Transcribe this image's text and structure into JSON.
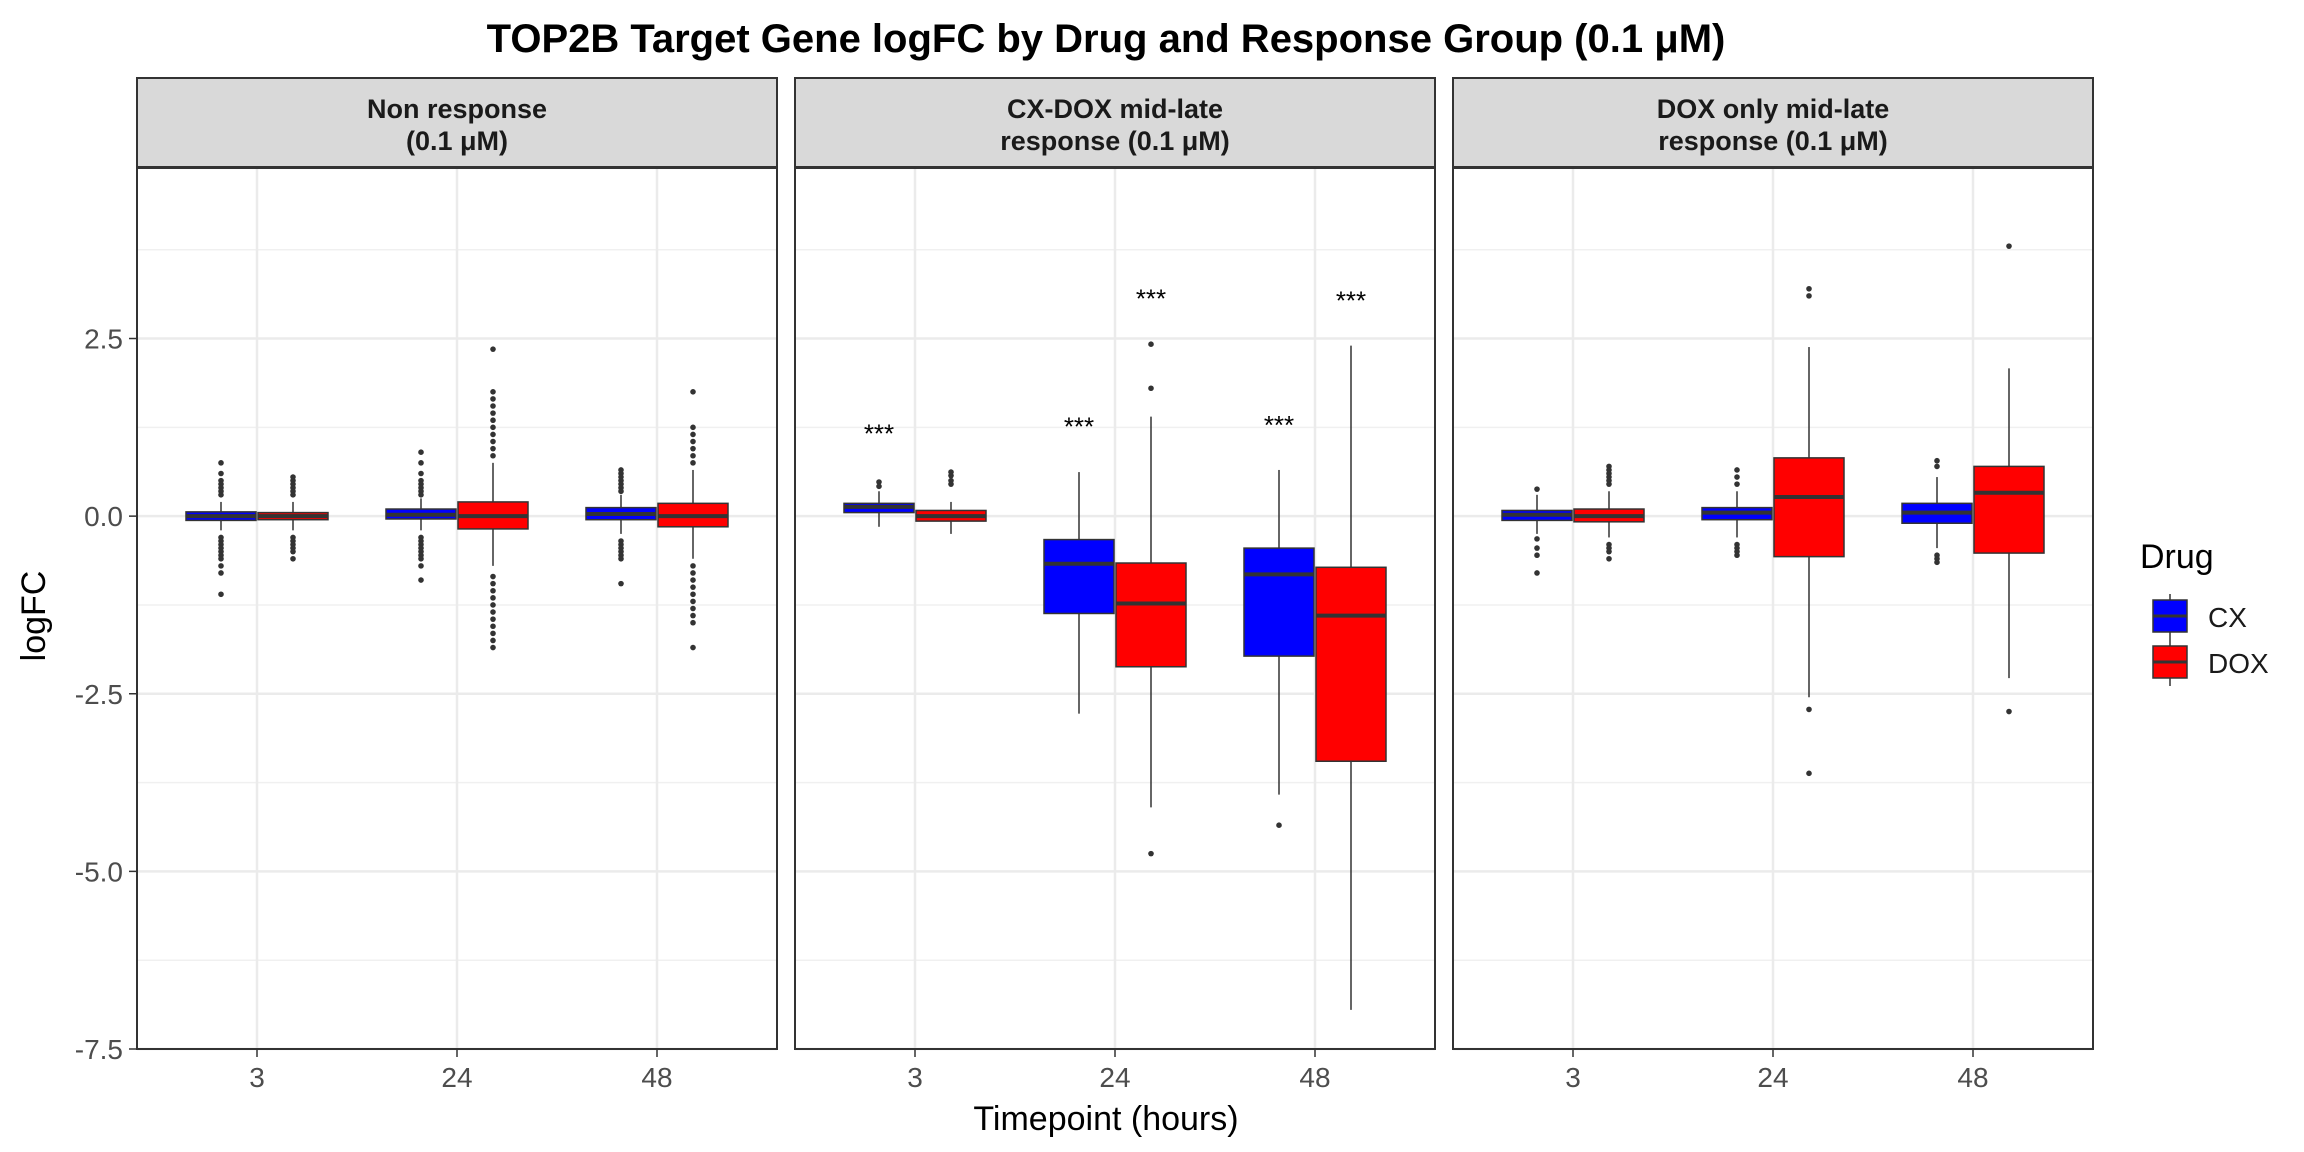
{
  "chart_data": {
    "type": "boxplot",
    "title": "TOP2B Target Gene logFC by Drug and Response Group (0.1 μM)",
    "xlabel": "Timepoint (hours)",
    "ylabel": "logFC",
    "categories": [
      "3",
      "24",
      "48"
    ],
    "y_ticks": [
      2.5,
      0.0,
      -2.5,
      -5.0,
      -7.5
    ],
    "y_tick_labels": [
      "2.5",
      "0.0",
      "-2.5",
      "-5.0",
      "-7.5"
    ],
    "ylim": [
      -7.5,
      4.9
    ],
    "grid": true,
    "legend": {
      "title": "Drug",
      "position": "right",
      "items": [
        {
          "name": "CX",
          "color": "#0000ff"
        },
        {
          "name": "DOX",
          "color": "#ff0000"
        }
      ]
    },
    "facets": [
      {
        "label_line1": "Non response",
        "label_line2": "(0.1 μM)",
        "boxes": [
          {
            "timepoint": "3",
            "drug": "CX",
            "q1": -0.06,
            "median": 0.0,
            "q3": 0.06,
            "whisker_low": -0.2,
            "whisker_high": 0.2,
            "outliers": [
              0.75,
              0.6,
              0.5,
              0.45,
              0.4,
              0.35,
              0.3,
              -0.3,
              -0.35,
              -0.4,
              -0.45,
              -0.5,
              -0.55,
              -0.6,
              -0.7,
              -0.8,
              -1.1
            ]
          },
          {
            "timepoint": "3",
            "drug": "DOX",
            "q1": -0.05,
            "median": 0.0,
            "q3": 0.05,
            "whisker_low": -0.2,
            "whisker_high": 0.2,
            "outliers": [
              0.55,
              0.5,
              0.45,
              0.4,
              0.35,
              0.3,
              -0.3,
              -0.35,
              -0.4,
              -0.45,
              -0.5,
              -0.6
            ]
          },
          {
            "timepoint": "24",
            "drug": "CX",
            "q1": -0.04,
            "median": 0.02,
            "q3": 0.1,
            "whisker_low": -0.2,
            "whisker_high": 0.25,
            "outliers": [
              0.9,
              0.75,
              0.6,
              0.5,
              0.45,
              0.4,
              0.35,
              0.3,
              -0.3,
              -0.35,
              -0.4,
              -0.45,
              -0.5,
              -0.55,
              -0.6,
              -0.7,
              -0.9
            ]
          },
          {
            "timepoint": "24",
            "drug": "DOX",
            "q1": -0.18,
            "median": 0.0,
            "q3": 0.2,
            "whisker_low": -0.7,
            "whisker_high": 0.75,
            "outliers": [
              2.35,
              1.75,
              1.65,
              1.55,
              1.45,
              1.35,
              1.25,
              1.15,
              1.05,
              0.95,
              0.85,
              -0.85,
              -0.95,
              -1.05,
              -1.15,
              -1.25,
              -1.35,
              -1.45,
              -1.55,
              -1.65,
              -1.75,
              -1.85
            ]
          },
          {
            "timepoint": "48",
            "drug": "CX",
            "q1": -0.05,
            "median": 0.03,
            "q3": 0.12,
            "whisker_low": -0.25,
            "whisker_high": 0.3,
            "outliers": [
              0.65,
              0.6,
              0.55,
              0.5,
              0.45,
              0.4,
              0.35,
              -0.35,
              -0.4,
              -0.45,
              -0.5,
              -0.55,
              -0.6,
              -0.95
            ]
          },
          {
            "timepoint": "48",
            "drug": "DOX",
            "q1": -0.15,
            "median": 0.0,
            "q3": 0.18,
            "whisker_low": -0.6,
            "whisker_high": 0.65,
            "outliers": [
              1.75,
              1.25,
              1.15,
              1.05,
              0.95,
              0.85,
              0.75,
              -0.7,
              -0.8,
              -0.9,
              -1.0,
              -1.1,
              -1.2,
              -1.3,
              -1.4,
              -1.5,
              -1.85
            ]
          }
        ],
        "annotations": []
      },
      {
        "label_line1": "CX-DOX mid-late",
        "label_line2": "response (0.1 μM)",
        "boxes": [
          {
            "timepoint": "3",
            "drug": "CX",
            "q1": 0.05,
            "median": 0.13,
            "q3": 0.18,
            "whisker_low": -0.15,
            "whisker_high": 0.35,
            "outliers": [
              0.48,
              0.42
            ]
          },
          {
            "timepoint": "3",
            "drug": "DOX",
            "q1": -0.07,
            "median": 0.0,
            "q3": 0.08,
            "whisker_low": -0.25,
            "whisker_high": 0.2,
            "outliers": [
              0.62,
              0.57,
              0.5,
              0.45
            ]
          },
          {
            "timepoint": "24",
            "drug": "CX",
            "q1": -1.37,
            "median": -0.67,
            "q3": -0.33,
            "whisker_low": -2.78,
            "whisker_high": 0.62,
            "outliers": []
          },
          {
            "timepoint": "24",
            "drug": "DOX",
            "q1": -2.12,
            "median": -1.23,
            "q3": -0.66,
            "whisker_low": -4.1,
            "whisker_high": 1.4,
            "outliers": [
              2.42,
              1.8,
              -4.75
            ]
          },
          {
            "timepoint": "48",
            "drug": "CX",
            "q1": -1.97,
            "median": -0.82,
            "q3": -0.45,
            "whisker_low": -3.92,
            "whisker_high": 0.65,
            "outliers": [
              -4.35
            ]
          },
          {
            "timepoint": "48",
            "drug": "DOX",
            "q1": -3.45,
            "median": -1.4,
            "q3": -0.72,
            "whisker_low": -6.95,
            "whisker_high": 2.4,
            "outliers": []
          }
        ],
        "annotations": [
          {
            "timepoint": "3",
            "drug": "CX",
            "text": "***",
            "y": 1.15
          },
          {
            "timepoint": "24",
            "drug": "CX",
            "text": "***",
            "y": 1.25
          },
          {
            "timepoint": "24",
            "drug": "DOX",
            "text": "***",
            "y": 3.05
          },
          {
            "timepoint": "48",
            "drug": "CX",
            "text": "***",
            "y": 1.27
          },
          {
            "timepoint": "48",
            "drug": "DOX",
            "text": "***",
            "y": 3.02
          }
        ]
      },
      {
        "label_line1": "DOX only mid-late",
        "label_line2": "response (0.1 μM)",
        "boxes": [
          {
            "timepoint": "3",
            "drug": "CX",
            "q1": -0.06,
            "median": 0.02,
            "q3": 0.08,
            "whisker_low": -0.25,
            "whisker_high": 0.3,
            "outliers": [
              0.38,
              -0.32,
              -0.45,
              -0.55,
              -0.8
            ]
          },
          {
            "timepoint": "3",
            "drug": "DOX",
            "q1": -0.08,
            "median": 0.0,
            "q3": 0.1,
            "whisker_low": -0.3,
            "whisker_high": 0.35,
            "outliers": [
              0.7,
              0.65,
              0.6,
              0.55,
              0.5,
              0.45,
              -0.4,
              -0.45,
              -0.5,
              -0.6
            ]
          },
          {
            "timepoint": "24",
            "drug": "CX",
            "q1": -0.05,
            "median": 0.05,
            "q3": 0.12,
            "whisker_low": -0.3,
            "whisker_high": 0.35,
            "outliers": [
              0.65,
              0.55,
              0.45,
              -0.4,
              -0.45,
              -0.5,
              -0.55
            ]
          },
          {
            "timepoint": "24",
            "drug": "DOX",
            "q1": -0.57,
            "median": 0.27,
            "q3": 0.82,
            "whisker_low": -2.55,
            "whisker_high": 2.38,
            "outliers": [
              3.2,
              3.1,
              -2.72,
              -3.62
            ]
          },
          {
            "timepoint": "48",
            "drug": "CX",
            "q1": -0.1,
            "median": 0.05,
            "q3": 0.18,
            "whisker_low": -0.45,
            "whisker_high": 0.55,
            "outliers": [
              0.78,
              0.7,
              -0.55,
              -0.6,
              -0.65
            ]
          },
          {
            "timepoint": "48",
            "drug": "DOX",
            "q1": -0.52,
            "median": 0.33,
            "q3": 0.7,
            "whisker_low": -2.28,
            "whisker_high": 2.08,
            "outliers": [
              3.8,
              -2.75
            ]
          }
        ],
        "annotations": []
      }
    ]
  }
}
